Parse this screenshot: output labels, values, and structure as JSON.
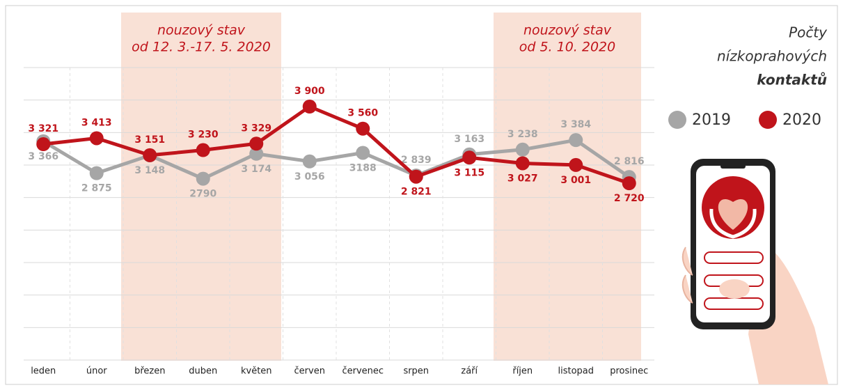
{
  "chart_data": {
    "type": "line",
    "title": [
      "Počty",
      "nízkoprahových",
      "kontaktů"
    ],
    "categories": [
      "leden",
      "únor",
      "březen",
      "duben",
      "květen",
      "červen",
      "červenec",
      "srpen",
      "září",
      "říjen",
      "listopad",
      "prosinec"
    ],
    "series": [
      {
        "name": "2019",
        "color": "#a6a6a6",
        "values": [
          3366,
          2875,
          3148,
          2790,
          3174,
          3056,
          3188,
          2839,
          3163,
          3238,
          3384,
          2816
        ],
        "value_labels": [
          "3 366",
          "2 875",
          "3 148",
          "2790",
          "3 174",
          "3 056",
          "3188",
          "2 839",
          "3 163",
          "3 238",
          "3 384",
          "2 816"
        ]
      },
      {
        "name": "2020",
        "color": "#c0141b",
        "values": [
          3321,
          3413,
          3151,
          3230,
          3329,
          3900,
          3560,
          2821,
          3115,
          3027,
          3001,
          2720
        ],
        "value_labels": [
          "3 321",
          "3 413",
          "3 151",
          "3 230",
          "3 329",
          "3 900",
          "3 560",
          "2 821",
          "3 115",
          "3 027",
          "3 001",
          "2 720"
        ]
      }
    ],
    "annotations": [
      {
        "lines": [
          "nouzový stav",
          "od 12. 3.-17. 5. 2020"
        ]
      },
      {
        "lines": [
          "nouzový stav",
          "od 5. 10. 2020"
        ]
      }
    ],
    "ylim": [
      0,
      4500
    ],
    "yticks": [
      0,
      500,
      1000,
      1500,
      2000,
      2500,
      3000,
      3500,
      4000,
      4500
    ],
    "grid": true
  }
}
